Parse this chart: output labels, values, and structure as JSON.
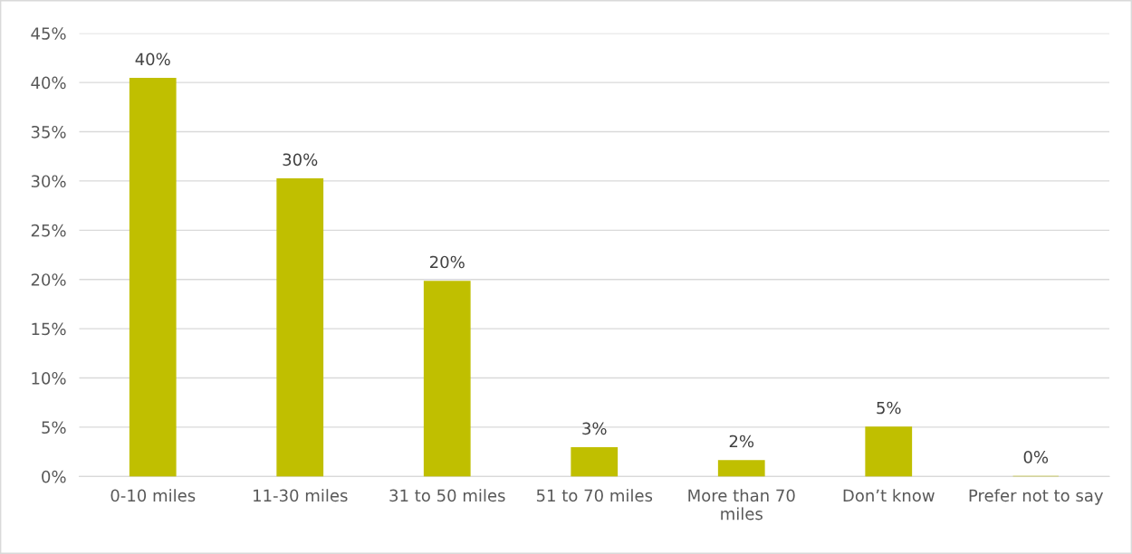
{
  "chart_data": {
    "type": "bar",
    "categories": [
      "0-10 miles",
      "11-30 miles",
      "31 to 50 miles",
      "51 to 70 miles",
      "More than 70\nmiles",
      "Don’t know",
      "Prefer not to say"
    ],
    "values": [
      40.4,
      30.2,
      19.8,
      2.9,
      1.6,
      5.0,
      0
    ],
    "value_labels": [
      "40%",
      "30%",
      "20%",
      "3%",
      "2%",
      "5%",
      "0%"
    ],
    "color": "#c0bf00",
    "ylim": [
      0,
      45
    ],
    "yticks": [
      {
        "value": 0,
        "label": "0%"
      },
      {
        "value": 5,
        "label": "5%"
      },
      {
        "value": 10,
        "label": "10%"
      },
      {
        "value": 15,
        "label": "15%"
      },
      {
        "value": 20,
        "label": "20%"
      },
      {
        "value": 25,
        "label": "25%"
      },
      {
        "value": 30,
        "label": "30%"
      },
      {
        "value": 35,
        "label": "35%"
      },
      {
        "value": 40,
        "label": "40%"
      },
      {
        "value": 45,
        "label": "45%"
      }
    ],
    "grid": "y",
    "legend": false
  }
}
